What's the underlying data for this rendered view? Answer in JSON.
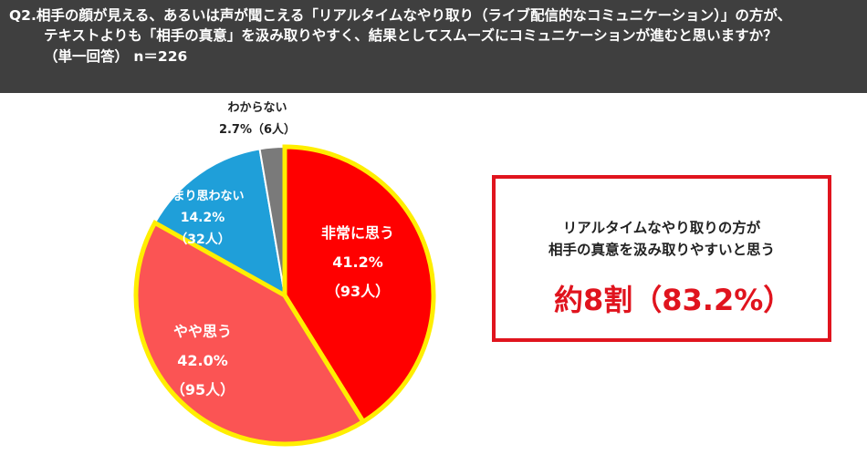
{
  "header": {
    "line1": "Q2.相手の顔が見える、あるいは声が聞こえる「リアルタイムなやり取り（ライブ配信的なコミュニケーション）」の方が、",
    "line2": "テキストよりも「相手の真意」を汲み取りやすく、結果としてスムーズにコミュニケーションが進むと思いますか？",
    "line3": "（単一回答） n＝226"
  },
  "callout": {
    "line1": "リアルタイムなやり取りの方が",
    "line2": "相手の真意を汲み取りやすいと思う",
    "highlight": "約8割（83.2%）"
  },
  "colors": {
    "header_bg": "#3f3f3f",
    "accent_red": "#e0141e",
    "slice_strong": "#ff0000",
    "slice_somewhat": "#fb5454",
    "slice_notmuch": "#1f9fd9",
    "slice_unknown": "#7a7a7a",
    "highlight_outline": "#ffee00"
  },
  "chart_data": {
    "type": "pie",
    "title": "",
    "slices": [
      {
        "label": "非常に思う",
        "value": 41.2,
        "percent": "41.2%",
        "count": "（93人）",
        "color": "#ff0000",
        "highlight": true
      },
      {
        "label": "やや思う",
        "value": 42.0,
        "percent": "42.0%",
        "count": "（95人）",
        "color": "#fb5454",
        "highlight": true
      },
      {
        "label": "あまり思わない",
        "value": 14.2,
        "percent": "14.2%",
        "count": "（32人）",
        "color": "#1f9fd9",
        "highlight": false
      },
      {
        "label": "わからない",
        "value": 2.7,
        "percent": "2.7%",
        "count": "（6人）",
        "color": "#7a7a7a",
        "highlight": false
      }
    ]
  }
}
